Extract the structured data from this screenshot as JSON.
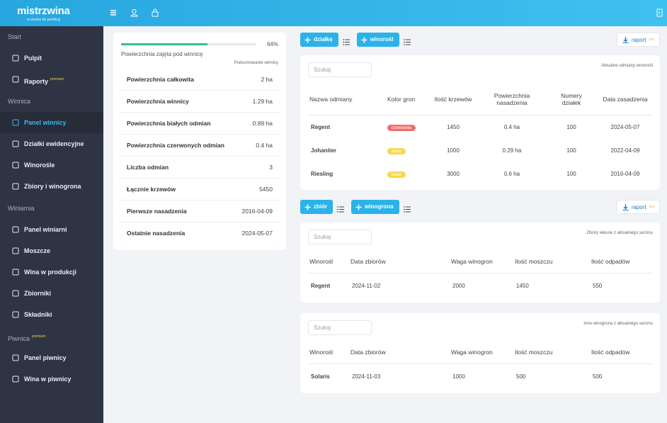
{
  "header": {
    "logo": "mistrzwina",
    "tagline": "w drodze do perfekcji"
  },
  "sidebar": {
    "sections": [
      {
        "title": "Start",
        "items": [
          {
            "label": "Pulpit"
          },
          {
            "label": "Raporty",
            "badge": "premium"
          }
        ]
      },
      {
        "title": "Winnica",
        "items": [
          {
            "label": "Panel winnicy",
            "active": true
          },
          {
            "label": "Działki ewidencyjne"
          },
          {
            "label": "Winorośle"
          },
          {
            "label": "Zbiory i winogrona"
          }
        ]
      },
      {
        "title": "Winiarnia",
        "items": [
          {
            "label": "Panel winiarni"
          },
          {
            "label": "Moszcze"
          },
          {
            "label": "Wina w produkcji"
          },
          {
            "label": "Zbiorniki"
          },
          {
            "label": "Składniki"
          }
        ]
      },
      {
        "title": "Piwnica",
        "badge": "premium",
        "items": [
          {
            "label": "Panel piwnicy"
          },
          {
            "label": "Wina w piwnicy"
          }
        ]
      }
    ]
  },
  "summary": {
    "progress": {
      "value": 64,
      "label": "64%"
    },
    "progress_caption": "Powierzchnia zajęta pod winnicę",
    "subtitle": "Podsumowanie winnicy",
    "rows": [
      [
        "Powierzchnia całkowita",
        "2 ha"
      ],
      [
        "Powierzchnia winnicy",
        "1.29 ha"
      ],
      [
        "Powierzchnia białych odmian",
        "0.89 ha"
      ],
      [
        "Powierzchnia czerwonych odmian",
        "0.4 ha"
      ],
      [
        "Liczba odmian",
        3
      ],
      [
        "Łącznie krzewów",
        5450
      ],
      [
        "Pierwsze nasadzenia",
        "2016-04-09"
      ],
      [
        "Ostatnie nasadzenia",
        "2024-05-07"
      ]
    ]
  },
  "varieties": {
    "buttons": [
      "działkę",
      "winorośl"
    ],
    "report": {
      "label": "raport",
      "badge": "pro"
    },
    "search": "Szukaj",
    "caption": "Aktualne odmiany winorośli",
    "columns": [
      "Nazwa odmiany",
      "Kolor gron",
      "Ilość krzewów",
      "Powierzchnia nasadzenia",
      "Numery działek",
      "Data zasadzenia"
    ],
    "rows": [
      [
        "Regent",
        {
          "text": "czerwone",
          "color": "#ef6f6c"
        },
        1450,
        "0.4 ha",
        100,
        "2024-05-07"
      ],
      [
        "Johaniter",
        {
          "text": "białe",
          "color": "#f7d84b"
        },
        1000,
        "0.29 ha",
        100,
        "2022-04-09"
      ],
      [
        "Riesling",
        {
          "text": "białe",
          "color": "#f7d84b"
        },
        3000,
        "0.6 ha",
        100,
        "2016-04-09"
      ]
    ]
  },
  "harvests": {
    "buttons": [
      "zbiór",
      "winogrona"
    ],
    "report": {
      "label": "raport",
      "badge": "pro"
    },
    "search": "Szukaj",
    "caption": "Zbiory własne z aktualnego sezonu",
    "columns": [
      "Winorośl",
      "Data zbiorów",
      "Waga winogron",
      "Ilość moszczu",
      "Ilość odpadów"
    ],
    "rows": [
      [
        "Regent",
        "2024-11-02",
        2000,
        1450,
        550
      ]
    ]
  },
  "other_grapes": {
    "search": "Szukaj",
    "caption": "Inne winogrona z aktualnego sezonu",
    "columns": [
      "Winorośl",
      "Data zbiorów",
      "Waga winogron",
      "Ilość moszczu",
      "Ilość odpadów"
    ],
    "rows": [
      [
        "Solaris",
        "2024-11-03",
        1000,
        500,
        500
      ]
    ]
  }
}
